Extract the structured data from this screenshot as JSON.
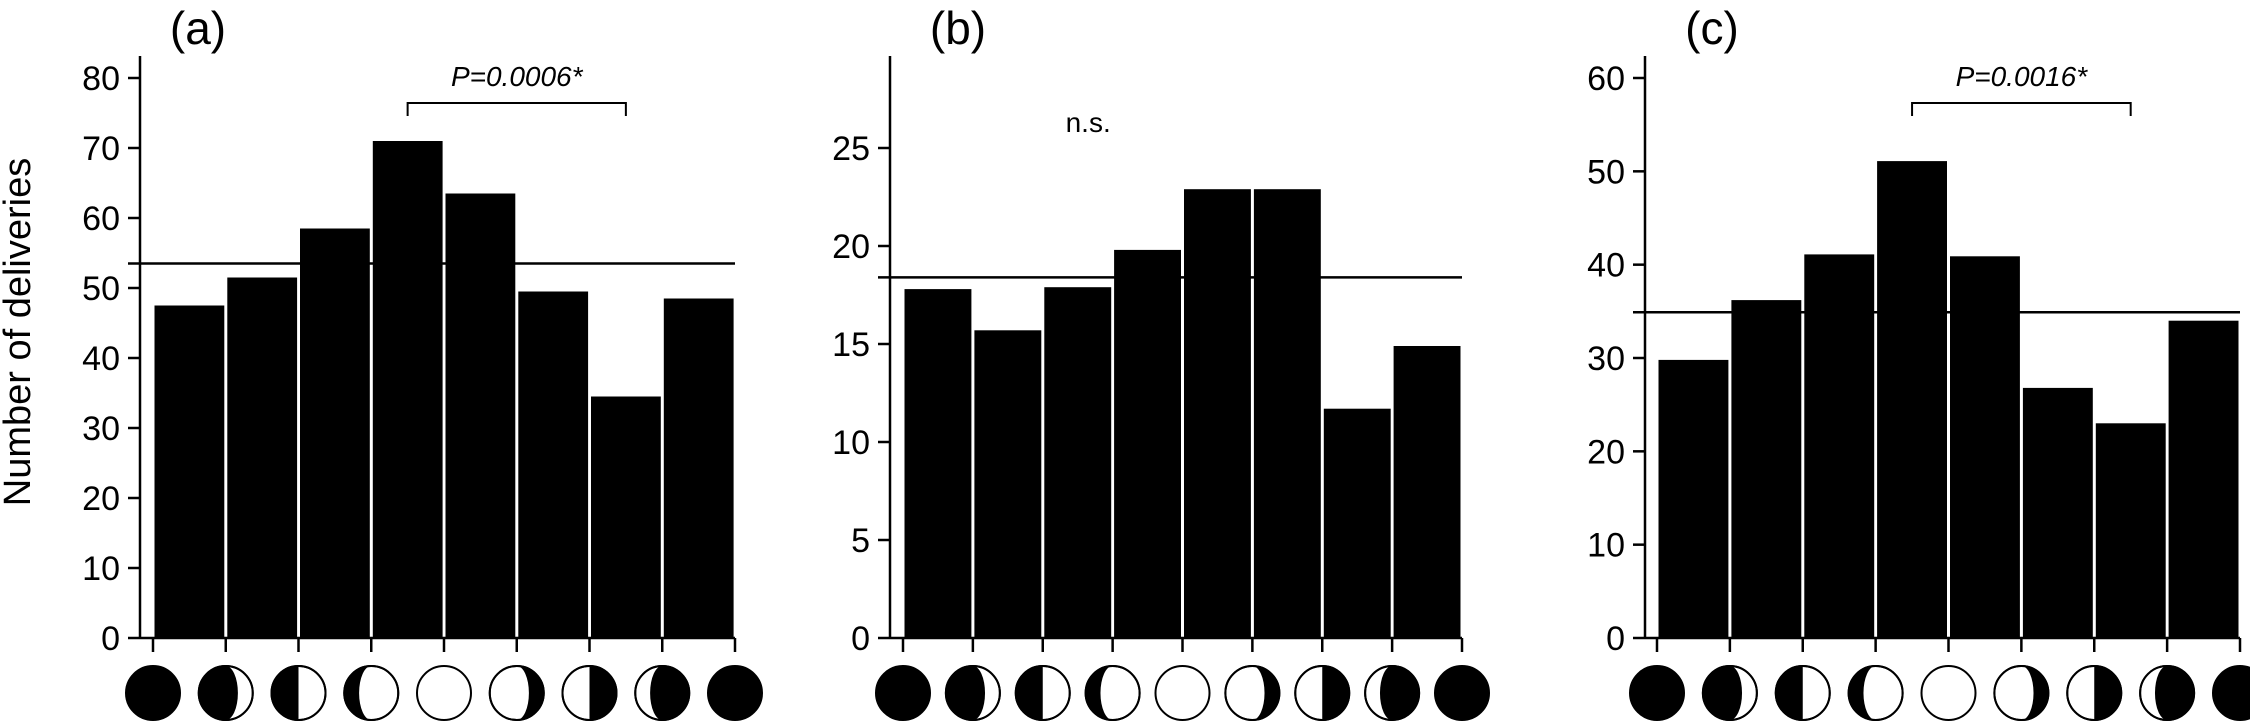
{
  "figure": {
    "ylabel": "Number of deliveries",
    "phase_icons": [
      "new-moon",
      "waxing-crescent",
      "first-quarter",
      "waxing-gibbous",
      "full-moon",
      "waning-gibbous",
      "last-quarter",
      "waning-crescent",
      "new-moon"
    ]
  },
  "chart_data": [
    {
      "type": "bar",
      "panel_label": "(a)",
      "ylim": [
        0,
        80
      ],
      "yticks": [
        0,
        10,
        20,
        30,
        40,
        50,
        60,
        70,
        80
      ],
      "values": [
        47.5,
        51.5,
        58.5,
        71,
        63.5,
        49.5,
        34.5,
        48.5
      ],
      "mean_line": 53.5,
      "annotation": {
        "text": "P=0.0006*",
        "italic": true,
        "bracket": [
          3.5,
          6.5
        ]
      }
    },
    {
      "type": "bar",
      "panel_label": "(b)",
      "ylim": [
        0,
        25
      ],
      "yticks": [
        0,
        5,
        10,
        15,
        20,
        25
      ],
      "values": [
        17.8,
        15.7,
        17.9,
        19.8,
        22.9,
        22.9,
        11.7,
        14.9
      ],
      "mean_line": 18.4,
      "annotation": {
        "text": "n.s.",
        "italic": false,
        "bracket": null
      }
    },
    {
      "type": "bar",
      "panel_label": "(c)",
      "ylim": [
        0,
        60
      ],
      "yticks": [
        0,
        10,
        20,
        30,
        40,
        50,
        60
      ],
      "values": [
        29.8,
        36.2,
        41.1,
        51.1,
        40.9,
        26.8,
        23.0,
        34.0
      ],
      "mean_line": 34.9,
      "annotation": {
        "text": "P=0.0016*",
        "italic": true,
        "bracket": [
          3.5,
          6.5
        ]
      }
    }
  ]
}
